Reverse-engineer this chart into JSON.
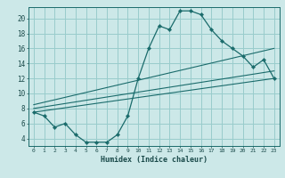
{
  "xlabel": "Humidex (Indice chaleur)",
  "bg_color": "#cce8e8",
  "grid_color": "#99cccc",
  "line_color": "#1a6b6b",
  "xlim": [
    -0.5,
    23.5
  ],
  "ylim": [
    3.0,
    21.5
  ],
  "xticks": [
    0,
    1,
    2,
    3,
    4,
    5,
    6,
    7,
    8,
    9,
    10,
    11,
    12,
    13,
    14,
    15,
    16,
    17,
    18,
    19,
    20,
    21,
    22,
    23
  ],
  "yticks": [
    4,
    6,
    8,
    10,
    12,
    14,
    16,
    18,
    20
  ],
  "humidex_x": [
    0,
    1,
    2,
    3,
    4,
    5,
    6,
    7,
    8,
    9,
    10,
    11,
    12,
    13,
    14,
    15,
    16,
    17,
    18,
    19,
    20,
    21,
    22,
    23
  ],
  "humidex_y": [
    7.5,
    7.0,
    5.5,
    6.0,
    4.5,
    3.5,
    3.5,
    3.5,
    4.5,
    7.0,
    12.0,
    16.0,
    19.0,
    18.5,
    21.0,
    21.0,
    20.5,
    18.5,
    17.0,
    16.0,
    15.0,
    13.5,
    14.5,
    12.0
  ],
  "line1_x": [
    0,
    23
  ],
  "line1_y": [
    7.5,
    12.0
  ],
  "line2_x": [
    0,
    23
  ],
  "line2_y": [
    8.0,
    13.0
  ],
  "line3_x": [
    0,
    23
  ],
  "line3_y": [
    8.5,
    16.0
  ]
}
